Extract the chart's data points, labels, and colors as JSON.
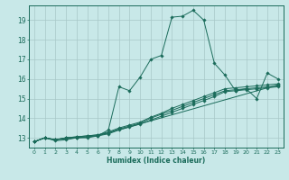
{
  "title": "",
  "xlabel": "Humidex (Indice chaleur)",
  "bg_color": "#c8e8e8",
  "grid_color": "#a8c8c8",
  "line_color": "#1a6b5a",
  "xlim": [
    -0.5,
    23.5
  ],
  "ylim": [
    12.5,
    19.75
  ],
  "yticks": [
    13,
    14,
    15,
    16,
    17,
    18,
    19
  ],
  "xticks": [
    0,
    1,
    2,
    3,
    4,
    5,
    6,
    7,
    8,
    9,
    10,
    11,
    12,
    13,
    14,
    15,
    16,
    17,
    18,
    19,
    20,
    21,
    22,
    23
  ],
  "series1": [
    [
      0,
      12.8
    ],
    [
      1,
      13.0
    ],
    [
      2,
      12.9
    ],
    [
      3,
      12.95
    ],
    [
      4,
      13.0
    ],
    [
      5,
      13.0
    ],
    [
      6,
      13.1
    ],
    [
      7,
      13.4
    ],
    [
      8,
      15.6
    ],
    [
      9,
      15.4
    ],
    [
      10,
      16.1
    ],
    [
      11,
      17.0
    ],
    [
      12,
      17.2
    ],
    [
      13,
      19.15
    ],
    [
      14,
      19.2
    ],
    [
      15,
      19.5
    ],
    [
      16,
      19.0
    ],
    [
      17,
      16.8
    ],
    [
      18,
      16.2
    ],
    [
      19,
      15.4
    ],
    [
      20,
      15.5
    ],
    [
      21,
      15.0
    ],
    [
      22,
      16.3
    ],
    [
      23,
      16.0
    ]
  ],
  "series2": [
    [
      0,
      12.8
    ],
    [
      1,
      13.0
    ],
    [
      2,
      12.85
    ],
    [
      3,
      12.9
    ],
    [
      4,
      13.0
    ],
    [
      5,
      13.05
    ],
    [
      6,
      13.1
    ],
    [
      23,
      15.7
    ]
  ],
  "series3": [
    [
      0,
      12.8
    ],
    [
      1,
      13.0
    ],
    [
      2,
      12.9
    ],
    [
      3,
      13.0
    ],
    [
      4,
      13.05
    ],
    [
      5,
      13.1
    ],
    [
      6,
      13.15
    ],
    [
      7,
      13.3
    ],
    [
      8,
      13.5
    ],
    [
      9,
      13.65
    ],
    [
      10,
      13.8
    ],
    [
      11,
      14.05
    ],
    [
      12,
      14.25
    ],
    [
      13,
      14.5
    ],
    [
      14,
      14.7
    ],
    [
      15,
      14.9
    ],
    [
      16,
      15.1
    ],
    [
      17,
      15.3
    ],
    [
      18,
      15.5
    ],
    [
      19,
      15.55
    ],
    [
      20,
      15.6
    ],
    [
      21,
      15.65
    ],
    [
      22,
      15.7
    ],
    [
      23,
      15.75
    ]
  ],
  "series4": [
    [
      0,
      12.8
    ],
    [
      1,
      13.0
    ],
    [
      2,
      12.9
    ],
    [
      3,
      13.0
    ],
    [
      4,
      13.05
    ],
    [
      5,
      13.1
    ],
    [
      6,
      13.15
    ],
    [
      7,
      13.25
    ],
    [
      8,
      13.45
    ],
    [
      9,
      13.6
    ],
    [
      10,
      13.75
    ],
    [
      11,
      14.0
    ],
    [
      12,
      14.2
    ],
    [
      13,
      14.4
    ],
    [
      14,
      14.6
    ],
    [
      15,
      14.8
    ],
    [
      16,
      15.0
    ],
    [
      17,
      15.2
    ],
    [
      18,
      15.4
    ],
    [
      19,
      15.45
    ],
    [
      20,
      15.5
    ],
    [
      21,
      15.55
    ],
    [
      22,
      15.6
    ],
    [
      23,
      15.65
    ]
  ],
  "series5": [
    [
      0,
      12.8
    ],
    [
      1,
      13.0
    ],
    [
      2,
      12.9
    ],
    [
      3,
      13.0
    ],
    [
      4,
      13.0
    ],
    [
      5,
      13.05
    ],
    [
      6,
      13.1
    ],
    [
      7,
      13.2
    ],
    [
      8,
      13.4
    ],
    [
      9,
      13.55
    ],
    [
      10,
      13.7
    ],
    [
      11,
      13.9
    ],
    [
      12,
      14.1
    ],
    [
      13,
      14.3
    ],
    [
      14,
      14.5
    ],
    [
      15,
      14.7
    ],
    [
      16,
      14.9
    ],
    [
      17,
      15.1
    ],
    [
      18,
      15.35
    ],
    [
      19,
      15.4
    ],
    [
      20,
      15.45
    ],
    [
      21,
      15.5
    ],
    [
      22,
      15.55
    ],
    [
      23,
      15.6
    ]
  ]
}
